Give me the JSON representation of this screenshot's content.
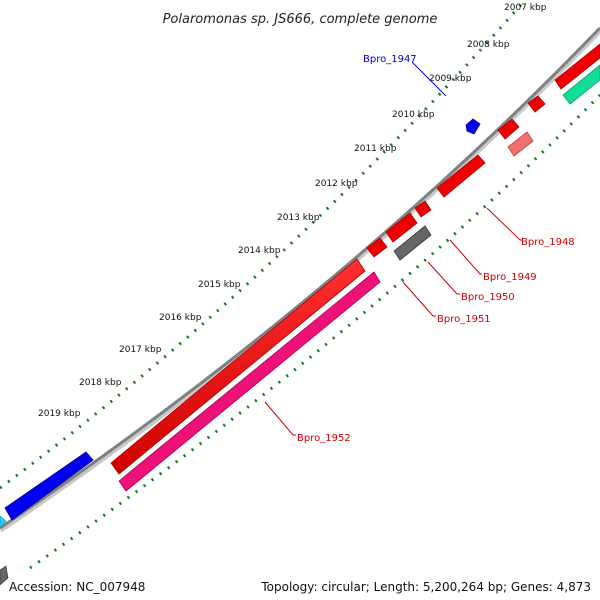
{
  "title": "Polaromonas sp. JS666, complete genome",
  "accession": "Accession: NC_007948",
  "summary": "Topology: circular; Length: 5,200,264 bp; Genes: 4,873",
  "ticks": [
    "2007 kbp",
    "2008 kbp",
    "2009 kbp",
    "2010 kbp",
    "2011 kbp",
    "2012 kbp",
    "2013 kbp",
    "2014 kbp",
    "2015 kbp",
    "2016 kbp",
    "2017 kbp",
    "2018 kbp",
    "2019 kbp"
  ],
  "genes": [
    {
      "label": "Bpro_1947",
      "color": "#0000cc"
    },
    {
      "label": "Bpro_1948",
      "color": "#cc0000"
    },
    {
      "label": "Bpro_1949",
      "color": "#cc0000"
    },
    {
      "label": "Bpro_1950",
      "color": "#cc0000"
    },
    {
      "label": "Bpro_1951",
      "color": "#cc0000"
    },
    {
      "label": "Bpro_1952",
      "color": "#cc0000"
    }
  ],
  "colors": {
    "backbone": "#808080",
    "tick_green": "#1a7a1a",
    "forward_gene": "#ee0000",
    "reverse_pink": "#ee1177",
    "blue_gene": "#0000ee",
    "teal_gene": "#11dd99",
    "gray_gene": "#666666",
    "light_red_gene": "#f07070"
  }
}
